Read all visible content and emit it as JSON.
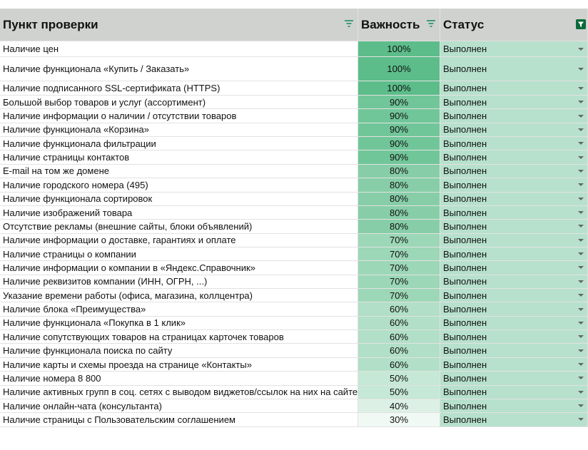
{
  "header": {
    "columns": [
      "Пункт проверки",
      "Важность",
      "Статус"
    ]
  },
  "table": {
    "rows": [
      [
        "Наличие цен",
        "100%",
        "Выполнен"
      ],
      [
        "Наличие функционала «Купить / Заказать»",
        "100%",
        "Выполнен"
      ],
      [
        "Наличие подписанного SSL-сертификата (HTTPS)",
        "100%",
        "Выполнен"
      ],
      [
        "Большой выбор товаров и услуг (ассортимент)",
        "90%",
        "Выполнен"
      ],
      [
        "Наличие информации о наличии / отсутствии товаров",
        "90%",
        "Выполнен"
      ],
      [
        "Наличие функционала «Корзина»",
        "90%",
        "Выполнен"
      ],
      [
        "Наличие функционала фильтрации",
        "90%",
        "Выполнен"
      ],
      [
        "Наличие страницы контактов",
        "90%",
        "Выполнен"
      ],
      [
        "E-mail на том же домене",
        "80%",
        "Выполнен"
      ],
      [
        "Наличие городского номера (495)",
        "80%",
        "Выполнен"
      ],
      [
        "Наличие функционала сортировок",
        "80%",
        "Выполнен"
      ],
      [
        "Наличие изображений товара",
        "80%",
        "Выполнен"
      ],
      [
        "Отсутствие рекламы (внешние сайты, блоки объявлений)",
        "80%",
        "Выполнен"
      ],
      [
        "Наличие информации о доставке, гарантиях и оплате",
        "70%",
        "Выполнен"
      ],
      [
        "Наличие страницы о компании",
        "70%",
        "Выполнен"
      ],
      [
        "Наличие информации о компании в «Яндекс.Справочник»",
        "70%",
        "Выполнен"
      ],
      [
        "Наличие реквизитов компании (ИНН, ОГРН, ...)",
        "70%",
        "Выполнен"
      ],
      [
        "Указание времени работы (офиса, магазина, коллцентра)",
        "70%",
        "Выполнен"
      ],
      [
        "Наличие блока «Преимущества»",
        "60%",
        "Выполнен"
      ],
      [
        "Наличие функционала «Покупка в 1 клик»",
        "60%",
        "Выполнен"
      ],
      [
        "Наличие сопутствующих товаров на страницах карточек товаров",
        "60%",
        "Выполнен"
      ],
      [
        "Наличие функционала поиска по сайту",
        "60%",
        "Выполнен"
      ],
      [
        "Наличие карты и схемы проезда на странице «Контакты»",
        "60%",
        "Выполнен"
      ],
      [
        "Наличие номера 8 800",
        "50%",
        "Выполнен"
      ],
      [
        "Наличие активных групп в соц. сетях с выводом виджетов/ссылок на них на сайте",
        "50%",
        "Выполнен"
      ],
      [
        "Наличие онлайн-чата (консультанта)",
        "40%",
        "Выполнен"
      ],
      [
        "Наличие страницы с Пользовательским соглашением",
        "30%",
        "Выполнен"
      ]
    ]
  }
}
